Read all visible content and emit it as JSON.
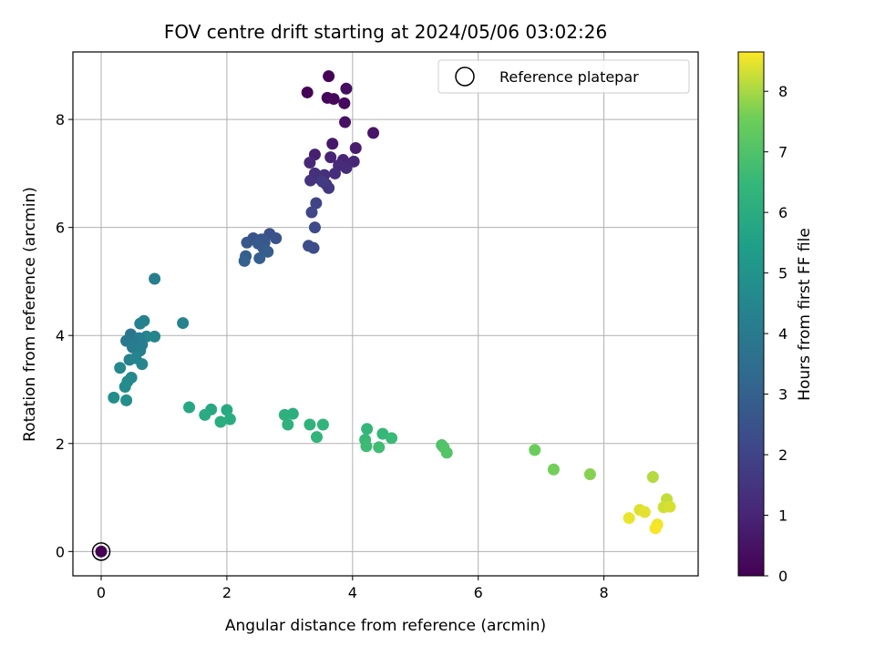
{
  "chart_data": {
    "type": "scatter",
    "title": "FOV centre drift starting at 2024/05/06 03:02:26",
    "xlabel": "Angular distance from reference (arcmin)",
    "ylabel": "Rotation from reference (arcmin)",
    "xlim": [
      -0.45,
      9.5
    ],
    "ylim": [
      -0.45,
      9.25
    ],
    "xticks": [
      0,
      2,
      4,
      6,
      8
    ],
    "yticks": [
      0,
      2,
      4,
      6,
      8
    ],
    "grid": true,
    "legend": {
      "placement": "top-right",
      "entries": [
        {
          "label": "Reference platepar",
          "marker": "open-circle"
        }
      ]
    },
    "colorbar": {
      "label": "Hours from first FF file",
      "colormap": "viridis",
      "range": [
        0,
        8.65
      ],
      "ticks": [
        0,
        1,
        2,
        3,
        4,
        5,
        6,
        7,
        8
      ]
    },
    "reference_point": {
      "x": 0,
      "y": 0
    },
    "points": [
      {
        "x": 0.0,
        "y": 0.0,
        "h": 0.0
      },
      {
        "x": 3.28,
        "y": 8.5,
        "h": 0.05
      },
      {
        "x": 3.62,
        "y": 8.8,
        "h": 0.1
      },
      {
        "x": 3.6,
        "y": 8.4,
        "h": 0.15
      },
      {
        "x": 3.7,
        "y": 8.38,
        "h": 0.2
      },
      {
        "x": 3.87,
        "y": 8.3,
        "h": 0.25
      },
      {
        "x": 3.9,
        "y": 8.57,
        "h": 0.35
      },
      {
        "x": 3.88,
        "y": 7.95,
        "h": 0.45
      },
      {
        "x": 4.33,
        "y": 7.75,
        "h": 0.55
      },
      {
        "x": 3.68,
        "y": 7.55,
        "h": 0.65
      },
      {
        "x": 4.05,
        "y": 7.47,
        "h": 0.75
      },
      {
        "x": 3.4,
        "y": 7.35,
        "h": 0.85
      },
      {
        "x": 3.65,
        "y": 7.3,
        "h": 0.95
      },
      {
        "x": 3.85,
        "y": 7.25,
        "h": 1.0
      },
      {
        "x": 4.02,
        "y": 7.22,
        "h": 1.05
      },
      {
        "x": 3.32,
        "y": 7.2,
        "h": 1.1
      },
      {
        "x": 3.78,
        "y": 7.15,
        "h": 1.15
      },
      {
        "x": 3.9,
        "y": 7.1,
        "h": 1.2
      },
      {
        "x": 3.72,
        "y": 7.0,
        "h": 1.25
      },
      {
        "x": 3.4,
        "y": 7.0,
        "h": 1.3
      },
      {
        "x": 3.55,
        "y": 6.97,
        "h": 1.35
      },
      {
        "x": 3.48,
        "y": 6.9,
        "h": 1.4
      },
      {
        "x": 3.33,
        "y": 6.87,
        "h": 1.45
      },
      {
        "x": 3.58,
        "y": 6.8,
        "h": 1.5
      },
      {
        "x": 3.62,
        "y": 6.73,
        "h": 1.6
      },
      {
        "x": 3.52,
        "y": 6.85,
        "h": 1.7
      },
      {
        "x": 3.42,
        "y": 6.45,
        "h": 2.0
      },
      {
        "x": 3.35,
        "y": 6.28,
        "h": 2.1
      },
      {
        "x": 3.4,
        "y": 6.0,
        "h": 2.2
      },
      {
        "x": 3.3,
        "y": 5.66,
        "h": 2.3
      },
      {
        "x": 3.38,
        "y": 5.62,
        "h": 2.35
      },
      {
        "x": 2.68,
        "y": 5.88,
        "h": 2.45
      },
      {
        "x": 2.78,
        "y": 5.8,
        "h": 2.5
      },
      {
        "x": 2.42,
        "y": 5.8,
        "h": 2.55
      },
      {
        "x": 2.55,
        "y": 5.78,
        "h": 2.6
      },
      {
        "x": 2.6,
        "y": 5.72,
        "h": 2.65
      },
      {
        "x": 2.32,
        "y": 5.72,
        "h": 2.7
      },
      {
        "x": 2.5,
        "y": 5.7,
        "h": 2.75
      },
      {
        "x": 2.58,
        "y": 5.62,
        "h": 2.8
      },
      {
        "x": 2.65,
        "y": 5.55,
        "h": 2.85
      },
      {
        "x": 2.3,
        "y": 5.47,
        "h": 2.9
      },
      {
        "x": 2.52,
        "y": 5.43,
        "h": 2.95
      },
      {
        "x": 2.28,
        "y": 5.38,
        "h": 3.0
      },
      {
        "x": 0.85,
        "y": 5.05,
        "h": 4.2
      },
      {
        "x": 0.68,
        "y": 4.27,
        "h": 4.25
      },
      {
        "x": 0.62,
        "y": 4.22,
        "h": 4.3
      },
      {
        "x": 1.3,
        "y": 4.23,
        "h": 4.35
      },
      {
        "x": 0.47,
        "y": 4.02,
        "h": 3.8
      },
      {
        "x": 0.72,
        "y": 3.98,
        "h": 4.4
      },
      {
        "x": 0.85,
        "y": 3.98,
        "h": 4.45
      },
      {
        "x": 0.6,
        "y": 3.95,
        "h": 4.1
      },
      {
        "x": 0.4,
        "y": 3.9,
        "h": 3.9
      },
      {
        "x": 0.55,
        "y": 3.85,
        "h": 4.0
      },
      {
        "x": 0.65,
        "y": 3.83,
        "h": 4.15
      },
      {
        "x": 0.5,
        "y": 3.78,
        "h": 4.05
      },
      {
        "x": 0.62,
        "y": 3.72,
        "h": 4.2
      },
      {
        "x": 0.45,
        "y": 3.55,
        "h": 4.3
      },
      {
        "x": 0.55,
        "y": 3.58,
        "h": 4.4
      },
      {
        "x": 0.65,
        "y": 3.47,
        "h": 4.5
      },
      {
        "x": 0.3,
        "y": 3.4,
        "h": 4.55
      },
      {
        "x": 0.48,
        "y": 3.22,
        "h": 4.6
      },
      {
        "x": 0.42,
        "y": 3.15,
        "h": 4.65
      },
      {
        "x": 0.38,
        "y": 3.05,
        "h": 4.7
      },
      {
        "x": 0.2,
        "y": 2.85,
        "h": 4.75
      },
      {
        "x": 0.4,
        "y": 2.8,
        "h": 4.8
      },
      {
        "x": 1.4,
        "y": 2.67,
        "h": 5.8
      },
      {
        "x": 1.75,
        "y": 2.63,
        "h": 5.85
      },
      {
        "x": 2.0,
        "y": 2.62,
        "h": 5.9
      },
      {
        "x": 1.65,
        "y": 2.53,
        "h": 5.95
      },
      {
        "x": 2.05,
        "y": 2.45,
        "h": 6.0
      },
      {
        "x": 1.9,
        "y": 2.4,
        "h": 6.05
      },
      {
        "x": 3.05,
        "y": 2.55,
        "h": 6.1
      },
      {
        "x": 2.92,
        "y": 2.53,
        "h": 6.15
      },
      {
        "x": 2.97,
        "y": 2.35,
        "h": 6.2
      },
      {
        "x": 3.32,
        "y": 2.35,
        "h": 6.25
      },
      {
        "x": 3.53,
        "y": 2.35,
        "h": 6.3
      },
      {
        "x": 3.43,
        "y": 2.12,
        "h": 6.35
      },
      {
        "x": 4.23,
        "y": 2.27,
        "h": 6.45
      },
      {
        "x": 4.48,
        "y": 2.18,
        "h": 6.5
      },
      {
        "x": 4.2,
        "y": 2.07,
        "h": 6.55
      },
      {
        "x": 4.62,
        "y": 2.1,
        "h": 6.6
      },
      {
        "x": 4.22,
        "y": 1.95,
        "h": 6.65
      },
      {
        "x": 4.42,
        "y": 1.93,
        "h": 6.7
      },
      {
        "x": 5.42,
        "y": 1.97,
        "h": 7.0
      },
      {
        "x": 5.45,
        "y": 1.93,
        "h": 7.05
      },
      {
        "x": 5.5,
        "y": 1.83,
        "h": 7.1
      },
      {
        "x": 6.9,
        "y": 1.88,
        "h": 7.5
      },
      {
        "x": 7.2,
        "y": 1.52,
        "h": 7.6
      },
      {
        "x": 7.78,
        "y": 1.43,
        "h": 7.75
      },
      {
        "x": 8.78,
        "y": 1.38,
        "h": 8.1
      },
      {
        "x": 9.0,
        "y": 0.97,
        "h": 8.2
      },
      {
        "x": 8.95,
        "y": 0.82,
        "h": 8.3
      },
      {
        "x": 9.05,
        "y": 0.83,
        "h": 8.35
      },
      {
        "x": 8.57,
        "y": 0.77,
        "h": 8.4
      },
      {
        "x": 8.65,
        "y": 0.73,
        "h": 8.45
      },
      {
        "x": 8.4,
        "y": 0.62,
        "h": 8.5
      },
      {
        "x": 8.85,
        "y": 0.5,
        "h": 8.55
      },
      {
        "x": 8.82,
        "y": 0.43,
        "h": 8.6
      }
    ]
  }
}
